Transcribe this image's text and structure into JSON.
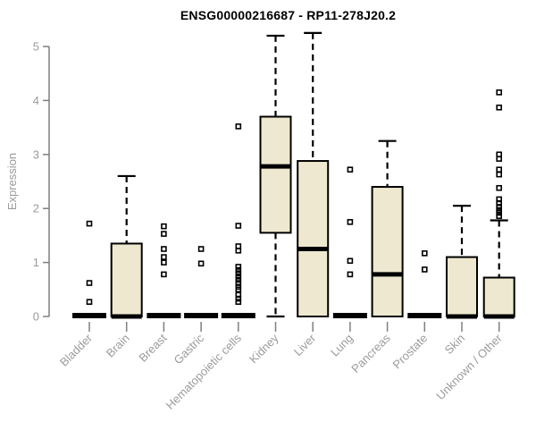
{
  "page": {
    "background": "#ffffff"
  },
  "chart_data": {
    "type": "boxplot",
    "title": "ENSG00000216687 - RP11-278J20.2",
    "xlabel": "",
    "ylabel": "Expression",
    "ylim": [
      0,
      5
    ],
    "yticks": [
      0,
      1,
      2,
      3,
      4,
      5
    ],
    "grid": false,
    "legend": "none",
    "colors": {
      "box_fill": "#ede8cf",
      "box_stroke": "#000000",
      "median": "#000000",
      "whisker": "#000000",
      "outlier": "#000000",
      "axis": "#7f7f7f",
      "tick_label": "#9b9b9b",
      "title": "#000000"
    },
    "categories": [
      "Bladder",
      "Brain",
      "Breast",
      "Gastric",
      "Hematopoietic cells",
      "Kidney",
      "Liver",
      "Lung",
      "Pancreas",
      "Prostate",
      "Skin",
      "Unknown / Other"
    ],
    "series": [
      {
        "category": "Bladder",
        "q1": 0,
        "median": 0,
        "q3": 0,
        "whisker_low": 0,
        "whisker_high": 0,
        "outliers": [
          0.27,
          0.62,
          1.72
        ]
      },
      {
        "category": "Brain",
        "q1": 0,
        "median": 0,
        "q3": 1.35,
        "whisker_low": 0,
        "whisker_high": 2.6,
        "outliers": []
      },
      {
        "category": "Breast",
        "q1": 0,
        "median": 0,
        "q3": 0,
        "whisker_low": 0,
        "whisker_high": 0,
        "outliers": [
          0.78,
          1.0,
          1.1,
          1.25,
          1.53,
          1.67
        ]
      },
      {
        "category": "Gastric",
        "q1": 0,
        "median": 0,
        "q3": 0,
        "whisker_low": 0,
        "whisker_high": 0,
        "outliers": [
          0.98,
          1.25
        ]
      },
      {
        "category": "Hematopoietic cells",
        "q1": 0,
        "median": 0,
        "q3": 0,
        "whisker_low": 0,
        "whisker_high": 0,
        "outliers": [
          0.27,
          0.33,
          0.4,
          0.5,
          0.55,
          0.62,
          0.68,
          0.74,
          0.8,
          0.86,
          0.92,
          1.22,
          1.3,
          1.68,
          3.52
        ]
      },
      {
        "category": "Kidney",
        "q1": 1.55,
        "median": 2.78,
        "q3": 3.7,
        "whisker_low": 0,
        "whisker_high": 5.2,
        "outliers": []
      },
      {
        "category": "Liver",
        "q1": 0,
        "median": 1.25,
        "q3": 2.88,
        "whisker_low": 0,
        "whisker_high": 5.25,
        "outliers": []
      },
      {
        "category": "Lung",
        "q1": 0,
        "median": 0,
        "q3": 0,
        "whisker_low": 0,
        "whisker_high": 0,
        "outliers": [
          0.78,
          1.03,
          1.75,
          2.72
        ]
      },
      {
        "category": "Pancreas",
        "q1": 0,
        "median": 0.78,
        "q3": 2.4,
        "whisker_low": 0,
        "whisker_high": 3.25,
        "outliers": []
      },
      {
        "category": "Prostate",
        "q1": 0,
        "median": 0,
        "q3": 0,
        "whisker_low": 0,
        "whisker_high": 0,
        "outliers": [
          0.87,
          1.17
        ]
      },
      {
        "category": "Skin",
        "q1": 0,
        "median": 0,
        "q3": 1.1,
        "whisker_low": 0,
        "whisker_high": 2.05,
        "outliers": []
      },
      {
        "category": "Unknown / Other",
        "q1": 0,
        "median": 0,
        "q3": 0.72,
        "whisker_low": 0,
        "whisker_high": 1.78,
        "outliers": [
          1.86,
          1.92,
          1.97,
          2.03,
          2.1,
          2.17,
          2.38,
          2.63,
          2.72,
          2.92,
          3.0,
          3.87,
          4.15
        ]
      }
    ]
  }
}
